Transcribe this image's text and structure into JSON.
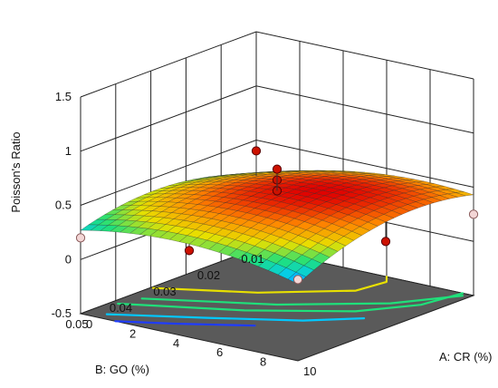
{
  "chart_data": {
    "type": "surface3d",
    "title": "",
    "zlabel": "Poisson's Ratio",
    "xlabel": "A: CR (%)",
    "ylabel": "B: GO (%)",
    "z_ticks": [
      "1.5",
      "1",
      "0.5",
      "0",
      "-0.5"
    ],
    "x_ticks": [
      "0",
      "2",
      "4",
      "6",
      "8",
      "10"
    ],
    "y_ticks": [
      "0.05",
      "0.04",
      "0.03",
      "0.02",
      "0.01"
    ],
    "zlim": [
      -0.5,
      1.5
    ],
    "xlim": [
      0,
      10
    ],
    "ylim": [
      0.01,
      0.05
    ],
    "grid": true,
    "colormap": [
      "#1f3cff",
      "#00c8ff",
      "#1fe07a",
      "#e8e000",
      "#ff8800",
      "#e00000"
    ],
    "floor_color": "#5a5a5a",
    "contour_colors": [
      "#1f3cff",
      "#00c8ff",
      "#1fe07a",
      "#1fe07a",
      "#e8e000"
    ],
    "design_points": [
      {
        "cr": 0,
        "go": 0.01,
        "ratio": 0.4,
        "above_surface": true
      },
      {
        "cr": 0,
        "go": 0.05,
        "ratio": 0.2,
        "above_surface": false
      },
      {
        "cr": 10,
        "go": 0.05,
        "ratio": 0.25,
        "above_surface": false
      },
      {
        "cr": 10,
        "go": 0.01,
        "ratio": 0.25,
        "above_surface": false
      },
      {
        "cr": 5,
        "go": 0.03,
        "ratio": 0.55,
        "above_surface": true
      },
      {
        "cr": 5,
        "go": 0.03,
        "ratio": 0.65,
        "above_surface": true
      },
      {
        "cr": 5,
        "go": 0.03,
        "ratio": 0.75,
        "above_surface": true
      },
      {
        "cr": 5,
        "go": 0.05,
        "ratio": 0.3,
        "above_surface": true
      },
      {
        "cr": 10,
        "go": 0.03,
        "ratio": 0.3,
        "above_surface": true
      }
    ]
  }
}
